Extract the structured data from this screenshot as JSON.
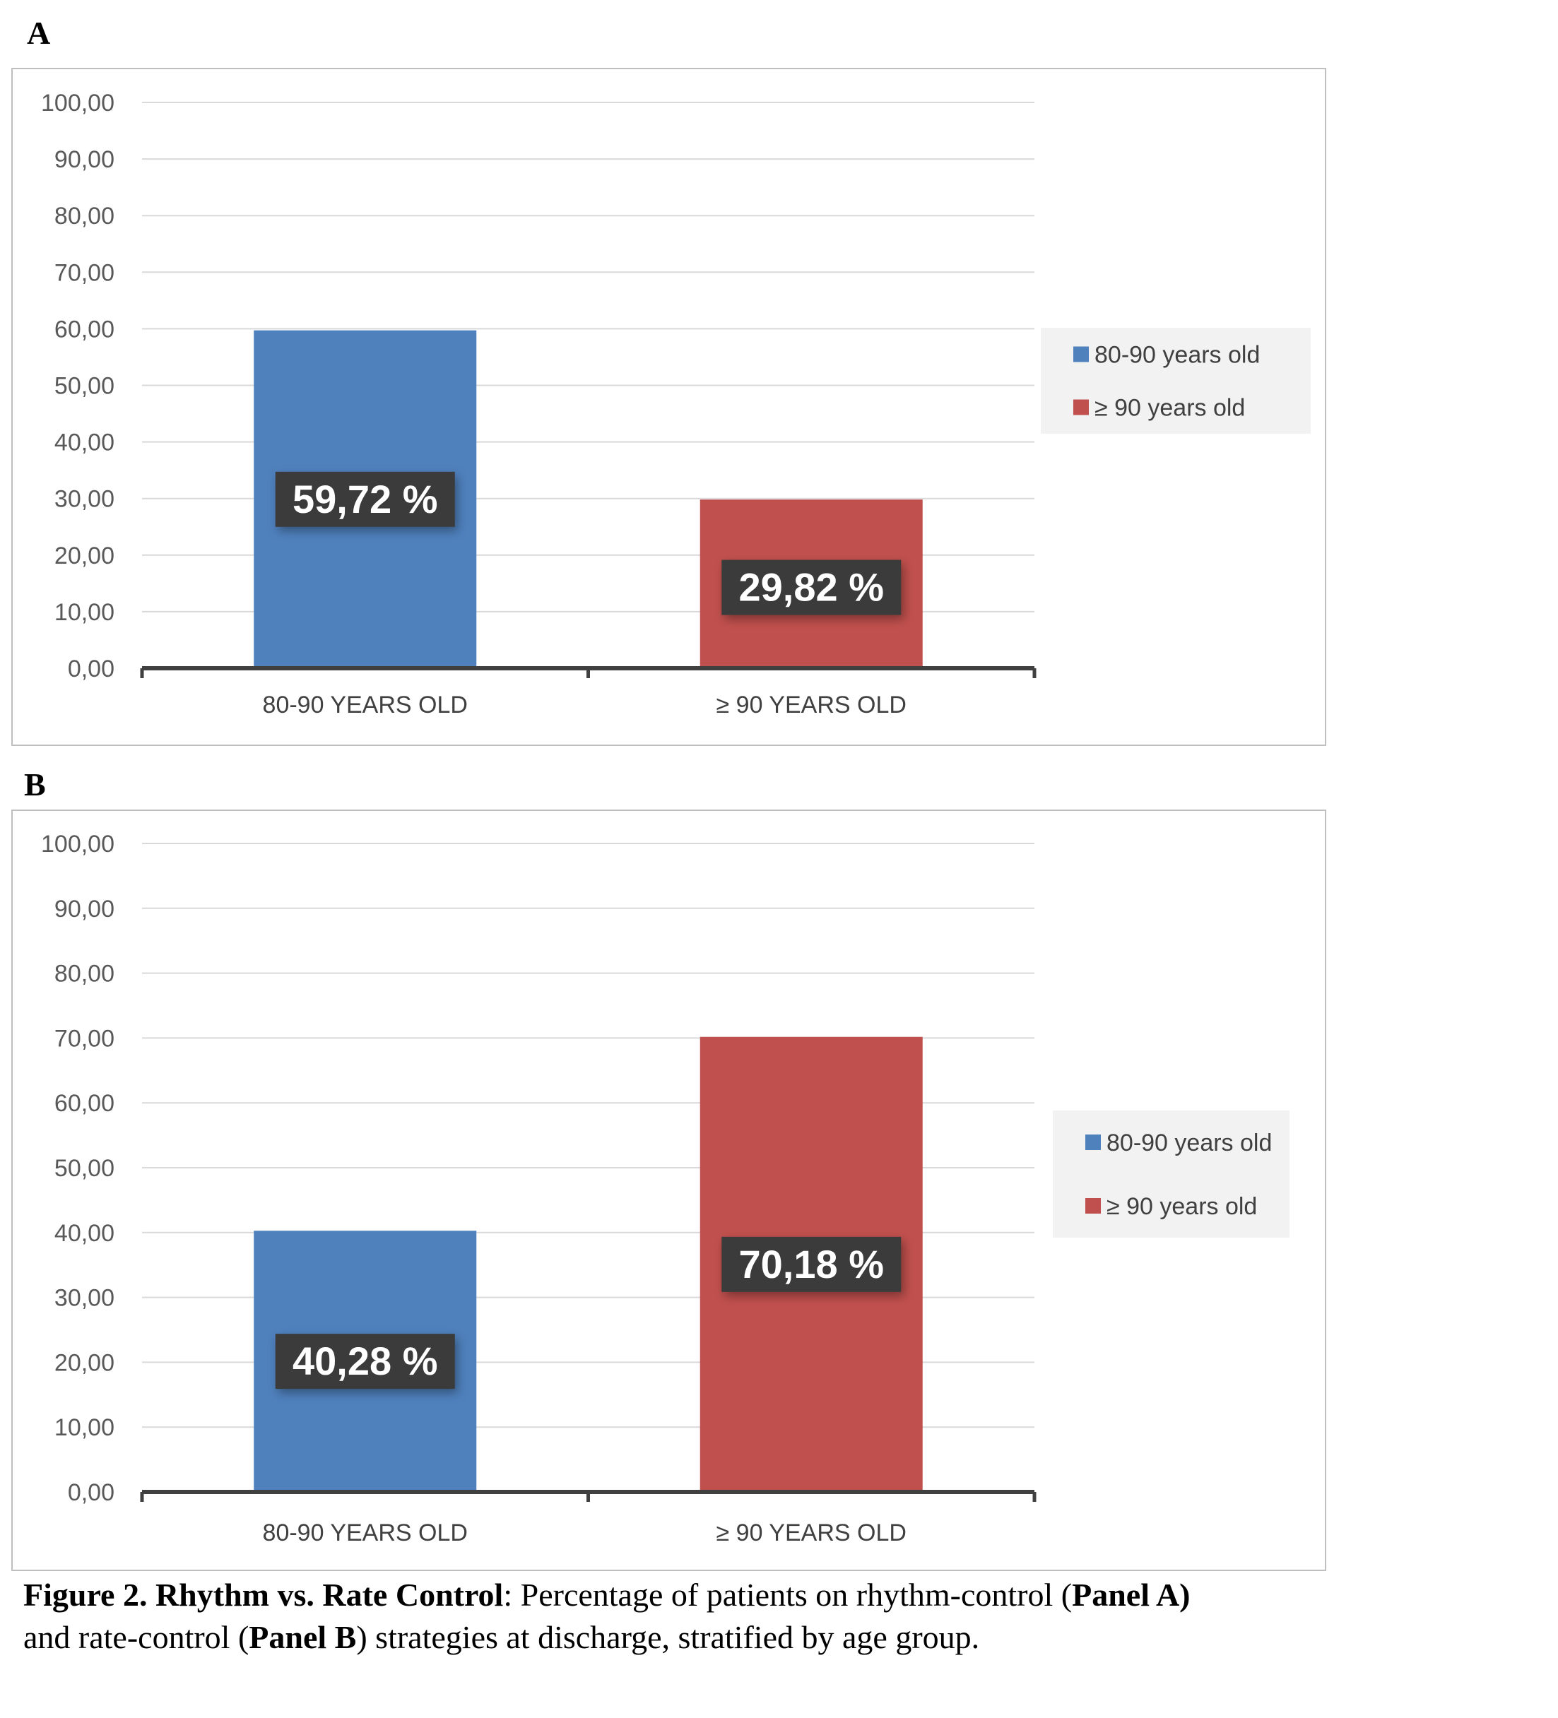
{
  "chart_data": [
    {
      "type": "bar",
      "panel": "A",
      "categories": [
        "80-90 YEARS OLD",
        "≥ 90 YEARS OLD"
      ],
      "values": [
        59.72,
        29.82
      ],
      "data_labels": [
        "59,72 %",
        "29,82 %"
      ],
      "colors": [
        "#4f81bd",
        "#c0504d"
      ],
      "y_ticks": [
        "0,00",
        "10,00",
        "20,00",
        "30,00",
        "40,00",
        "50,00",
        "60,00",
        "70,00",
        "80,00",
        "90,00",
        "100,00"
      ],
      "ylim": [
        0,
        100
      ],
      "grid": true,
      "legend": {
        "placement": "right",
        "entries": [
          {
            "label": "80-90 years old",
            "color": "#4f81bd"
          },
          {
            "label": "≥ 90 years old",
            "color": "#c0504d"
          }
        ]
      }
    },
    {
      "type": "bar",
      "panel": "B",
      "categories": [
        "80-90 YEARS OLD",
        "≥ 90 YEARS OLD"
      ],
      "values": [
        40.28,
        70.18
      ],
      "data_labels": [
        "40,28 %",
        "70,18 %"
      ],
      "colors": [
        "#4f81bd",
        "#c0504d"
      ],
      "y_ticks": [
        "0,00",
        "10,00",
        "20,00",
        "30,00",
        "40,00",
        "50,00",
        "60,00",
        "70,00",
        "80,00",
        "90,00",
        "100,00"
      ],
      "ylim": [
        0,
        100
      ],
      "grid": true,
      "legend": {
        "placement": "right",
        "entries": [
          {
            "label": "80-90 years old",
            "color": "#4f81bd"
          },
          {
            "label": "≥ 90 years old",
            "color": "#c0504d"
          }
        ]
      }
    }
  ],
  "caption": {
    "lead": "Figure 2. Rhythm vs. Rate Control",
    "part1": ": Percentage of patients on rhythm-control (",
    "panel_a": "Panel A)",
    "part2": "and rate-control (",
    "panel_b": "Panel B",
    "part3": ") strategies at discharge, stratified by age group."
  }
}
